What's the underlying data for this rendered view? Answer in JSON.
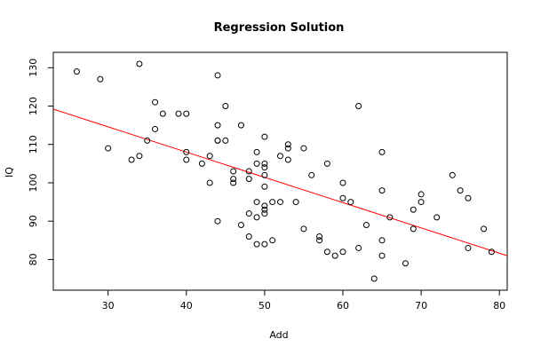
{
  "chart_data": {
    "type": "scatter",
    "title": "Regression Solution",
    "xlabel": "Add",
    "ylabel": "IQ",
    "xlim": [
      23,
      81
    ],
    "ylim": [
      72,
      134
    ],
    "xticks": [
      30,
      40,
      50,
      60,
      70,
      80
    ],
    "yticks": [
      80,
      90,
      100,
      110,
      120,
      130
    ],
    "xtick_labels": [
      "30",
      "40",
      "50",
      "60",
      "70",
      "80"
    ],
    "ytick_labels": [
      "80",
      "90",
      "100",
      "110",
      "120",
      "130"
    ],
    "grid": false,
    "point_color": "#000000",
    "line_color": "#ff0000",
    "regression_line": {
      "x": [
        23,
        81
      ],
      "y": [
        119.2,
        81.0
      ]
    },
    "points": [
      [
        26,
        129
      ],
      [
        29,
        127
      ],
      [
        30,
        109
      ],
      [
        33,
        106
      ],
      [
        34,
        131
      ],
      [
        34,
        107
      ],
      [
        35,
        111
      ],
      [
        36,
        121
      ],
      [
        36,
        114
      ],
      [
        37,
        118
      ],
      [
        39,
        118
      ],
      [
        40,
        118
      ],
      [
        40,
        108
      ],
      [
        40,
        106
      ],
      [
        42,
        105
      ],
      [
        43,
        107
      ],
      [
        43,
        100
      ],
      [
        44,
        128
      ],
      [
        44,
        115
      ],
      [
        44,
        111
      ],
      [
        44,
        111
      ],
      [
        44,
        90
      ],
      [
        45,
        120
      ],
      [
        45,
        111
      ],
      [
        46,
        103
      ],
      [
        46,
        101
      ],
      [
        46,
        100
      ],
      [
        47,
        115
      ],
      [
        47,
        89
      ],
      [
        48,
        103
      ],
      [
        48,
        101
      ],
      [
        48,
        92
      ],
      [
        48,
        86
      ],
      [
        49,
        108
      ],
      [
        49,
        105
      ],
      [
        49,
        95
      ],
      [
        49,
        91
      ],
      [
        49,
        84
      ],
      [
        50,
        112
      ],
      [
        50,
        105
      ],
      [
        50,
        104
      ],
      [
        50,
        102
      ],
      [
        50,
        99
      ],
      [
        50,
        94
      ],
      [
        50,
        93
      ],
      [
        50,
        92
      ],
      [
        50,
        84
      ],
      [
        51,
        95
      ],
      [
        51,
        85
      ],
      [
        52,
        107
      ],
      [
        52,
        95
      ],
      [
        53,
        110
      ],
      [
        53,
        109
      ],
      [
        53,
        106
      ],
      [
        54,
        95
      ],
      [
        55,
        109
      ],
      [
        55,
        88
      ],
      [
        56,
        102
      ],
      [
        57,
        86
      ],
      [
        57,
        85
      ],
      [
        58,
        105
      ],
      [
        58,
        82
      ],
      [
        59,
        81
      ],
      [
        60,
        100
      ],
      [
        60,
        96
      ],
      [
        60,
        82
      ],
      [
        61,
        95
      ],
      [
        62,
        120
      ],
      [
        62,
        83
      ],
      [
        63,
        89
      ],
      [
        64,
        75
      ],
      [
        65,
        108
      ],
      [
        65,
        98
      ],
      [
        65,
        85
      ],
      [
        65,
        81
      ],
      [
        66,
        91
      ],
      [
        68,
        79
      ],
      [
        69,
        93
      ],
      [
        69,
        88
      ],
      [
        70,
        97
      ],
      [
        70,
        95
      ],
      [
        72,
        91
      ],
      [
        74,
        102
      ],
      [
        75,
        98
      ],
      [
        76,
        96
      ],
      [
        76,
        83
      ],
      [
        78,
        88
      ],
      [
        79,
        82
      ]
    ]
  }
}
